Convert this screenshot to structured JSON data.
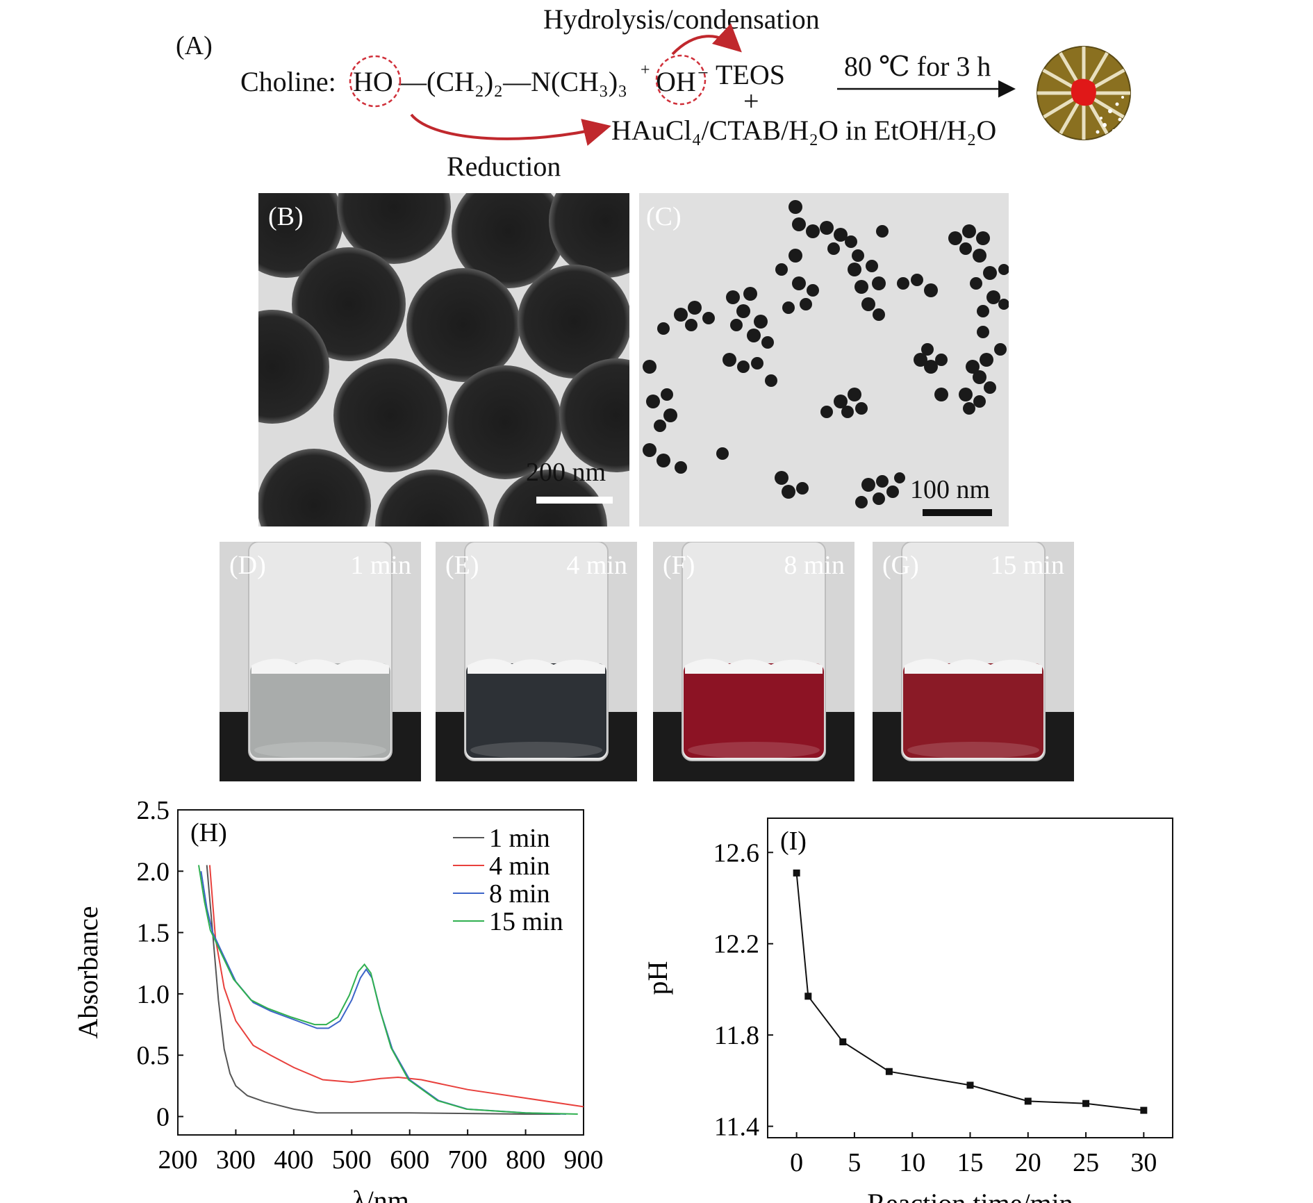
{
  "panel_a": {
    "label": "(A)",
    "top_reaction_label": "Hydrolysis/condensation",
    "choline_prefix": "Choline:",
    "ho_group": "HO",
    "chain": "—(CH₂)₂—N(CH₃)₃",
    "charge_plus": "+",
    "oh_group": "OH",
    "charge_minus": "−",
    "teos": "TEOS",
    "plus_sign": "+",
    "condition": "80 ℃ for 3 h",
    "reagents": "HAuCl₄/CTAB/H₂O in EtOH/H₂O",
    "bottom_reaction_label": "Reduction",
    "colors": {
      "arrow_red": "#c0282d",
      "particle_gold": "#8a7020",
      "core_red": "#e01818"
    }
  },
  "panel_b": {
    "label": "(B)",
    "scale_bar": "200 nm"
  },
  "panel_c": {
    "label": "(C)",
    "scale_bar": "100 nm"
  },
  "vials": [
    {
      "label": "(D)",
      "time": "1 min",
      "liquid_color": "#a9acab"
    },
    {
      "label": "(E)",
      "time": "4 min",
      "liquid_color": "#2d3136"
    },
    {
      "label": "(F)",
      "time": "8 min",
      "liquid_color": "#8c1324"
    },
    {
      "label": "(G)",
      "time": "15 min",
      "liquid_color": "#8a1a26"
    }
  ],
  "chart_data": [
    {
      "panel": "(H)",
      "type": "line",
      "xlabel": "λ/nm",
      "ylabel": "Absorbance",
      "xlim": [
        200,
        900
      ],
      "ylim": [
        -0.15,
        2.5
      ],
      "xticks": [
        200,
        300,
        400,
        500,
        600,
        700,
        800,
        900
      ],
      "yticks": [
        0,
        0.5,
        1.0,
        1.5,
        2.0,
        2.5
      ],
      "ytick_labels": [
        "0",
        "0.5",
        "1.0",
        "1.5",
        "2.0",
        "2.5"
      ],
      "legend_position": "top-right",
      "series": [
        {
          "name": "1 min",
          "color": "#555555",
          "x": [
            250,
            260,
            270,
            280,
            290,
            300,
            320,
            350,
            400,
            440,
            500,
            600,
            700,
            800,
            860
          ],
          "y": [
            2.05,
            1.5,
            0.95,
            0.55,
            0.35,
            0.25,
            0.17,
            0.12,
            0.06,
            0.03,
            0.03,
            0.03,
            0.025,
            0.02,
            0.02
          ]
        },
        {
          "name": "4 min",
          "color": "#e8403c",
          "x": [
            255,
            265,
            280,
            300,
            330,
            360,
            400,
            450,
            500,
            550,
            580,
            620,
            700,
            800,
            900
          ],
          "y": [
            2.05,
            1.45,
            1.05,
            0.78,
            0.58,
            0.5,
            0.4,
            0.3,
            0.28,
            0.31,
            0.32,
            0.3,
            0.22,
            0.15,
            0.08
          ]
        },
        {
          "name": "8 min",
          "color": "#3c64c8",
          "x": [
            240,
            250,
            260,
            280,
            300,
            330,
            360,
            400,
            440,
            460,
            480,
            500,
            515,
            525,
            535,
            550,
            570,
            600,
            650,
            700,
            800,
            870
          ],
          "y": [
            2.0,
            1.7,
            1.5,
            1.3,
            1.1,
            0.93,
            0.86,
            0.79,
            0.72,
            0.72,
            0.78,
            0.95,
            1.13,
            1.2,
            1.13,
            0.85,
            0.55,
            0.3,
            0.13,
            0.06,
            0.03,
            0.02
          ]
        },
        {
          "name": "15 min",
          "color": "#30b050",
          "x": [
            236,
            246,
            256,
            276,
            296,
            326,
            356,
            396,
            436,
            456,
            476,
            496,
            511,
            522,
            533,
            548,
            568,
            598,
            648,
            698,
            798,
            890
          ],
          "y": [
            2.05,
            1.75,
            1.52,
            1.32,
            1.12,
            0.95,
            0.88,
            0.81,
            0.75,
            0.75,
            0.81,
            0.99,
            1.18,
            1.24,
            1.17,
            0.88,
            0.56,
            0.3,
            0.13,
            0.06,
            0.03,
            0.02
          ]
        }
      ]
    },
    {
      "panel": "(I)",
      "type": "line",
      "xlabel": "Reaction time/min",
      "ylabel": "pH",
      "xlim": [
        -2.5,
        32.5
      ],
      "ylim": [
        11.35,
        12.75
      ],
      "xticks": [
        0,
        5,
        10,
        15,
        20,
        25,
        30
      ],
      "yticks": [
        11.4,
        11.8,
        12.2,
        12.6
      ],
      "ytick_labels": [
        "11.4",
        "11.8",
        "12.2",
        "12.6"
      ],
      "series": [
        {
          "name": "",
          "color": "#111111",
          "x": [
            0,
            1,
            4,
            8,
            15,
            20,
            25,
            30
          ],
          "y": [
            12.51,
            11.97,
            11.77,
            11.64,
            11.58,
            11.51,
            11.5,
            11.47
          ]
        }
      ]
    }
  ]
}
